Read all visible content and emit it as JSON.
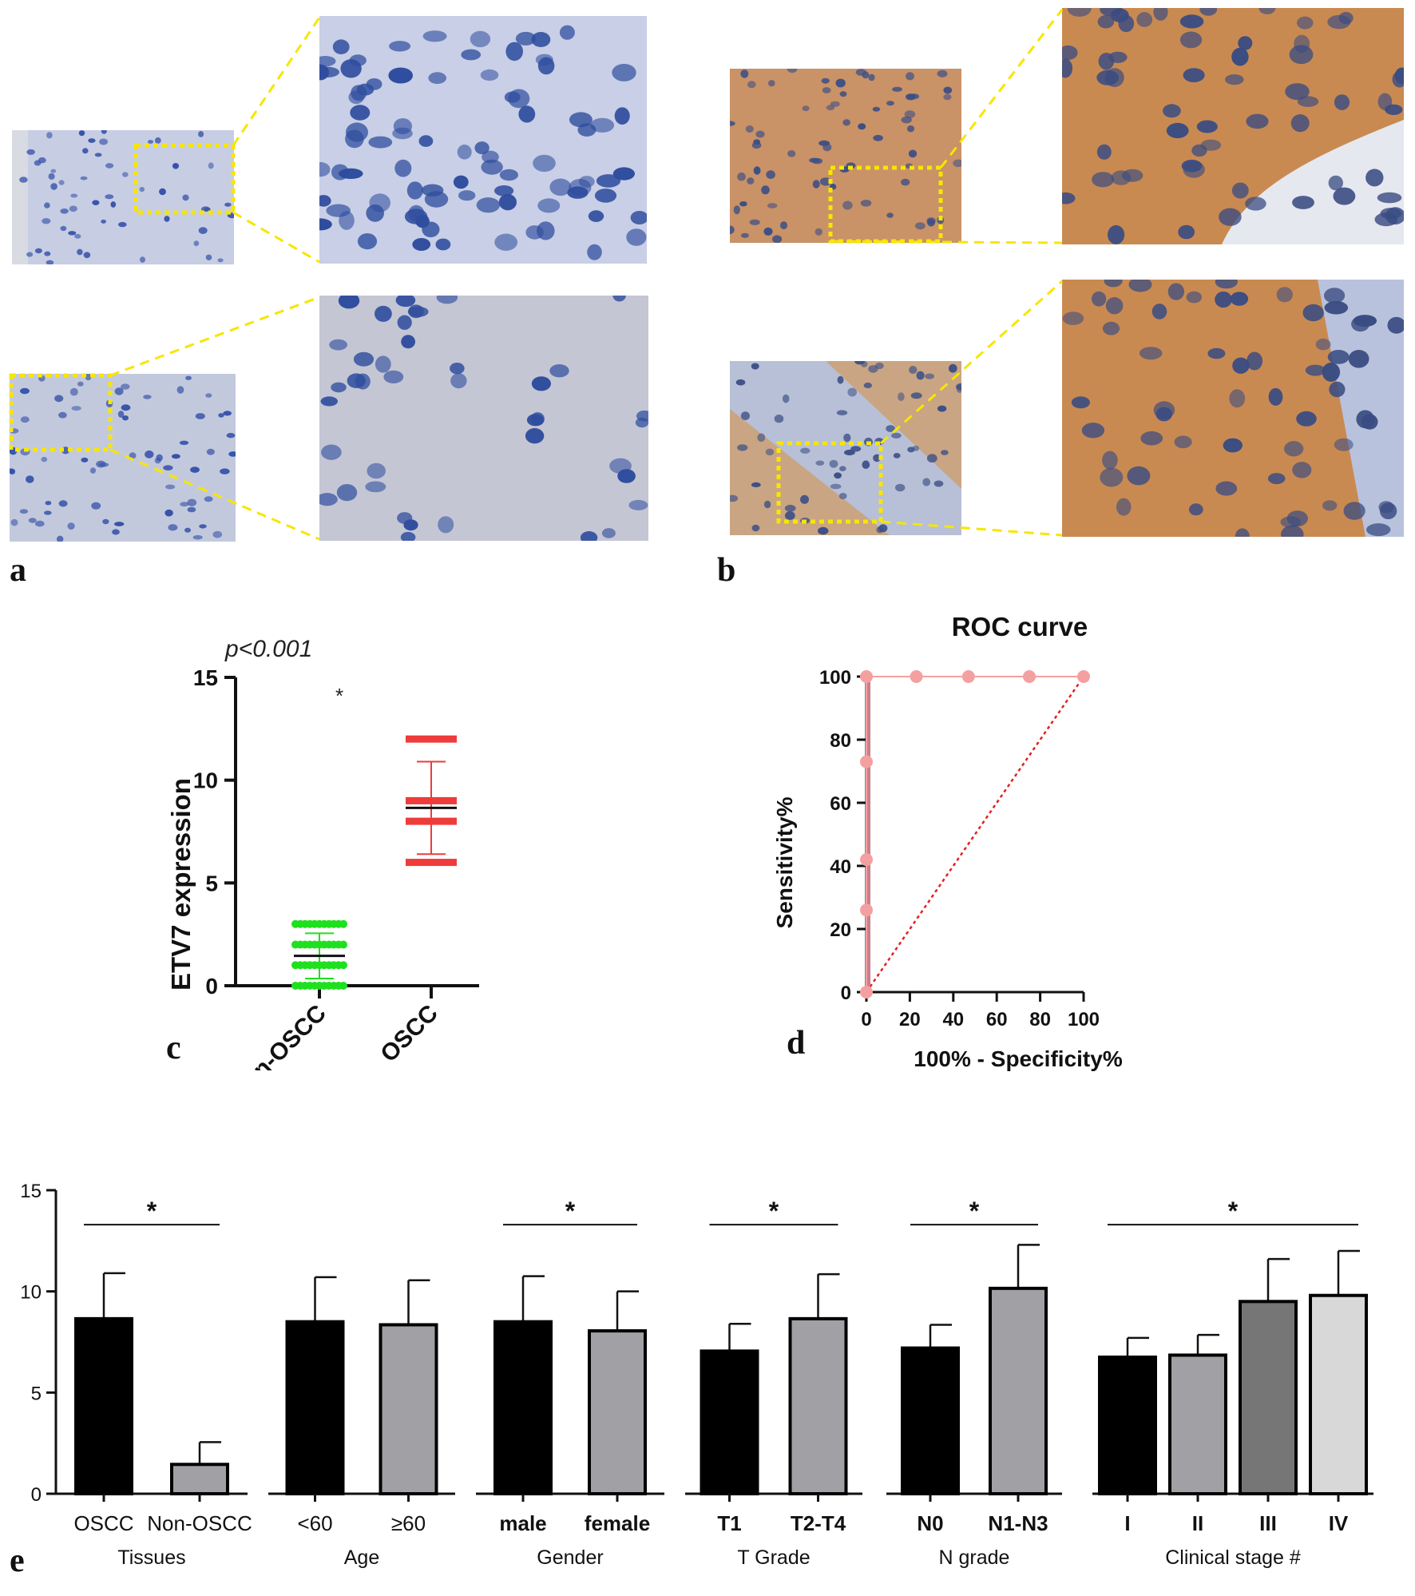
{
  "panel_letters": {
    "a": "a",
    "b": "b",
    "c": "c",
    "d": "d",
    "e": "e"
  },
  "colors": {
    "normal_tissue_bg": "#c9cfe4",
    "nucleus": "#2f4d9e",
    "tumor_stain": "#c98a52",
    "zoom_box": "#f7e600",
    "green_points": "#1fe01f",
    "red_points": "#ee3b3b",
    "roc": "#f4a0a0",
    "diagonal": "#e32020"
  },
  "chart_data": [
    {
      "id": "c",
      "type": "scatter",
      "annotation": "p<0.001",
      "asterisk": "*",
      "ylabel": "ETV7 expression",
      "categories": [
        "non-OSCC",
        "OSCC"
      ],
      "ylim": [
        0,
        15
      ],
      "yticks": [
        0,
        5,
        10,
        15
      ],
      "series": [
        {
          "name": "non-OSCC",
          "color": "#1fe01f",
          "levels": [
            0,
            1,
            2,
            3
          ],
          "mean": 1.45,
          "sd_low": 0.35,
          "sd_high": 2.55
        },
        {
          "name": "OSCC",
          "color": "#ee3b3b",
          "levels": [
            6,
            8,
            9,
            12
          ],
          "mean": 8.65,
          "sd_low": 6.4,
          "sd_high": 10.9
        }
      ]
    },
    {
      "id": "d",
      "type": "line",
      "title": "ROC curve",
      "xlabel": "100% - Specificity%",
      "ylabel": "Sensitivity%",
      "xlim": [
        0,
        100
      ],
      "ylim": [
        0,
        100
      ],
      "xticks": [
        0,
        20,
        40,
        60,
        80,
        100
      ],
      "yticks": [
        0,
        20,
        40,
        60,
        80,
        100
      ],
      "x": [
        0,
        0,
        0,
        0,
        0,
        23,
        47,
        75,
        100
      ],
      "y": [
        0,
        26,
        42,
        73,
        100,
        100,
        100,
        100,
        100
      ],
      "reference_line": [
        [
          0,
          0
        ],
        [
          100,
          100
        ]
      ]
    },
    {
      "id": "e",
      "type": "bar",
      "ylim": [
        0,
        15
      ],
      "yticks": [
        0,
        5,
        10,
        15
      ],
      "groups": [
        {
          "label": "Tissues",
          "categories": [
            "OSCC",
            "Non-OSCC"
          ],
          "values": [
            8.65,
            1.45
          ],
          "errors": [
            2.25,
            1.1
          ],
          "colors": [
            "#000000",
            "#a0a0a5"
          ],
          "sig": "*",
          "bold_ticks": false
        },
        {
          "label": "Age",
          "categories": [
            "<60",
            "≥60"
          ],
          "values": [
            8.5,
            8.35
          ],
          "errors": [
            2.2,
            2.2
          ],
          "colors": [
            "#000000",
            "#a0a0a5"
          ],
          "sig": "",
          "bold_ticks": false
        },
        {
          "label": "Gender",
          "categories": [
            "male",
            "female"
          ],
          "values": [
            8.5,
            8.05
          ],
          "errors": [
            2.25,
            1.95
          ],
          "colors": [
            "#000000",
            "#a0a0a5"
          ],
          "sig": "*",
          "bold_ticks": true
        },
        {
          "label": "T Grade",
          "categories": [
            "T1",
            "T2-T4"
          ],
          "values": [
            7.05,
            8.65
          ],
          "errors": [
            1.35,
            2.2
          ],
          "colors": [
            "#000000",
            "#a0a0a5"
          ],
          "sig": "*",
          "bold_ticks": true
        },
        {
          "label": "N grade",
          "categories": [
            "N0",
            "N1-N3"
          ],
          "values": [
            7.2,
            10.15
          ],
          "errors": [
            1.15,
            2.15
          ],
          "colors": [
            "#000000",
            "#a0a0a5"
          ],
          "sig": "*",
          "bold_ticks": true
        },
        {
          "label": "Clinical stage #",
          "categories": [
            "I",
            "II",
            "III",
            "IV"
          ],
          "values": [
            6.75,
            6.85,
            9.5,
            9.8
          ],
          "errors": [
            0.95,
            1.0,
            2.1,
            2.2
          ],
          "colors": [
            "#000000",
            "#a0a0a5",
            "#767676",
            "#d8d8d8"
          ],
          "sig": "*",
          "bold_ticks": true
        }
      ]
    }
  ]
}
